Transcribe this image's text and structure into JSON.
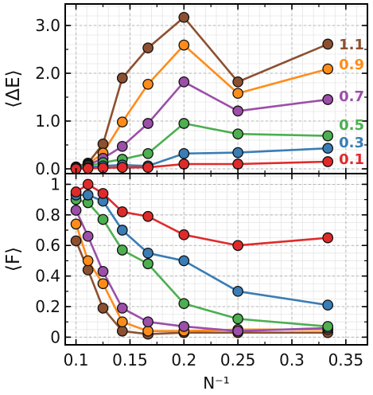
{
  "chart_data": [
    {
      "type": "line",
      "panel": "top",
      "ylabel": "⟨ΔE⟩",
      "ylim": [
        -0.1,
        3.45
      ],
      "yticks": [
        "0.0",
        "1.0",
        "2.0",
        "3.0"
      ],
      "grid": true,
      "legend": "labels at right end of each line",
      "x": [
        0.1,
        0.1111,
        0.125,
        0.1429,
        0.1667,
        0.2,
        0.25,
        0.3333
      ],
      "series": [
        {
          "name": "1.1",
          "color": "#8c5030",
          "values": [
            0.04,
            0.12,
            0.52,
            1.9,
            2.53,
            3.17,
            1.82,
            2.61
          ]
        },
        {
          "name": "0.9",
          "color": "#ff8c1a",
          "values": [
            0.03,
            0.1,
            0.33,
            0.98,
            1.77,
            2.59,
            1.58,
            2.09
          ]
        },
        {
          "name": "0.7",
          "color": "#9b4fa8",
          "values": [
            0.03,
            0.08,
            0.22,
            0.47,
            0.95,
            1.82,
            1.21,
            1.45
          ]
        },
        {
          "name": "0.5",
          "color": "#4caf50",
          "values": [
            0.02,
            0.06,
            0.13,
            0.2,
            0.32,
            0.95,
            0.73,
            0.69
          ]
        },
        {
          "name": "0.3",
          "color": "#3a7db5",
          "values": [
            0.02,
            0.03,
            0.06,
            0.08,
            0.06,
            0.32,
            0.34,
            0.43
          ]
        },
        {
          "name": "0.1",
          "color": "#e02a2a",
          "values": [
            0.0,
            0.01,
            0.02,
            0.03,
            0.03,
            0.1,
            0.1,
            0.15
          ]
        }
      ]
    },
    {
      "type": "line",
      "panel": "bottom",
      "xlabel": "N⁻¹",
      "ylabel": "⟨F⟩",
      "xlim": [
        0.09,
        0.37
      ],
      "ylim": [
        -0.05,
        1.07
      ],
      "xticks": [
        "0.1",
        "0.15",
        "0.2",
        "0.25",
        "0.3",
        "0.35"
      ],
      "yticks": [
        "0",
        "0.2",
        "0.4",
        "0.6",
        "0.8",
        "1"
      ],
      "grid": true,
      "x": [
        0.1,
        0.1111,
        0.125,
        0.1429,
        0.1667,
        0.2,
        0.25,
        0.3333
      ],
      "series": [
        {
          "name": "1.1",
          "color": "#8c5030",
          "values": [
            0.63,
            0.44,
            0.19,
            0.04,
            0.02,
            0.03,
            0.03,
            0.03
          ]
        },
        {
          "name": "0.9",
          "color": "#ff8c1a",
          "values": [
            0.74,
            0.5,
            0.35,
            0.1,
            0.04,
            0.04,
            0.05,
            0.05
          ]
        },
        {
          "name": "0.7",
          "color": "#9b4fa8",
          "values": [
            0.83,
            0.66,
            0.43,
            0.19,
            0.1,
            0.07,
            0.04,
            0.06
          ]
        },
        {
          "name": "0.5",
          "color": "#4caf50",
          "values": [
            0.9,
            0.88,
            0.77,
            0.57,
            0.48,
            0.22,
            0.12,
            0.07
          ]
        },
        {
          "name": "0.3",
          "color": "#3a7db5",
          "values": [
            0.93,
            0.93,
            0.89,
            0.7,
            0.55,
            0.5,
            0.3,
            0.21
          ]
        },
        {
          "name": "0.1",
          "color": "#e02a2a",
          "values": [
            0.95,
            1.0,
            0.94,
            0.82,
            0.79,
            0.67,
            0.6,
            0.65
          ]
        }
      ]
    }
  ]
}
